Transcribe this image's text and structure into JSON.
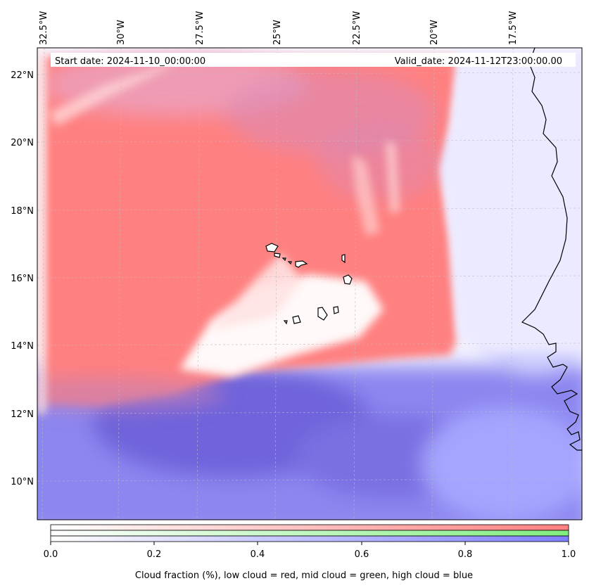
{
  "map": {
    "start_date_label": "Start date: 2024-11-10_00:00:00",
    "valid_date_label": "Valid_date: 2024-11-12T23:00:00.00",
    "lon_labels": [
      "32.5°W",
      "30°W",
      "27.5°W",
      "25°W",
      "22.5°W",
      "20°W",
      "17.5°W"
    ],
    "lat_labels": [
      "22°N",
      "20°N",
      "18°N",
      "16°N",
      "14°N",
      "12°N",
      "10°N"
    ],
    "colors": {
      "low_cloud": "#ff7f7f",
      "mid_cloud": "#80ee80",
      "high_cloud": "#7f7fff",
      "coastline": "#000000",
      "gridline": "#bbbbbb"
    }
  },
  "colorbar": {
    "tick_labels": [
      "0.0",
      "0.2",
      "0.4",
      "0.6",
      "0.8",
      "1.0"
    ],
    "label": "Cloud fraction (%), low cloud = red, mid cloud = green, high cloud = blue"
  }
}
